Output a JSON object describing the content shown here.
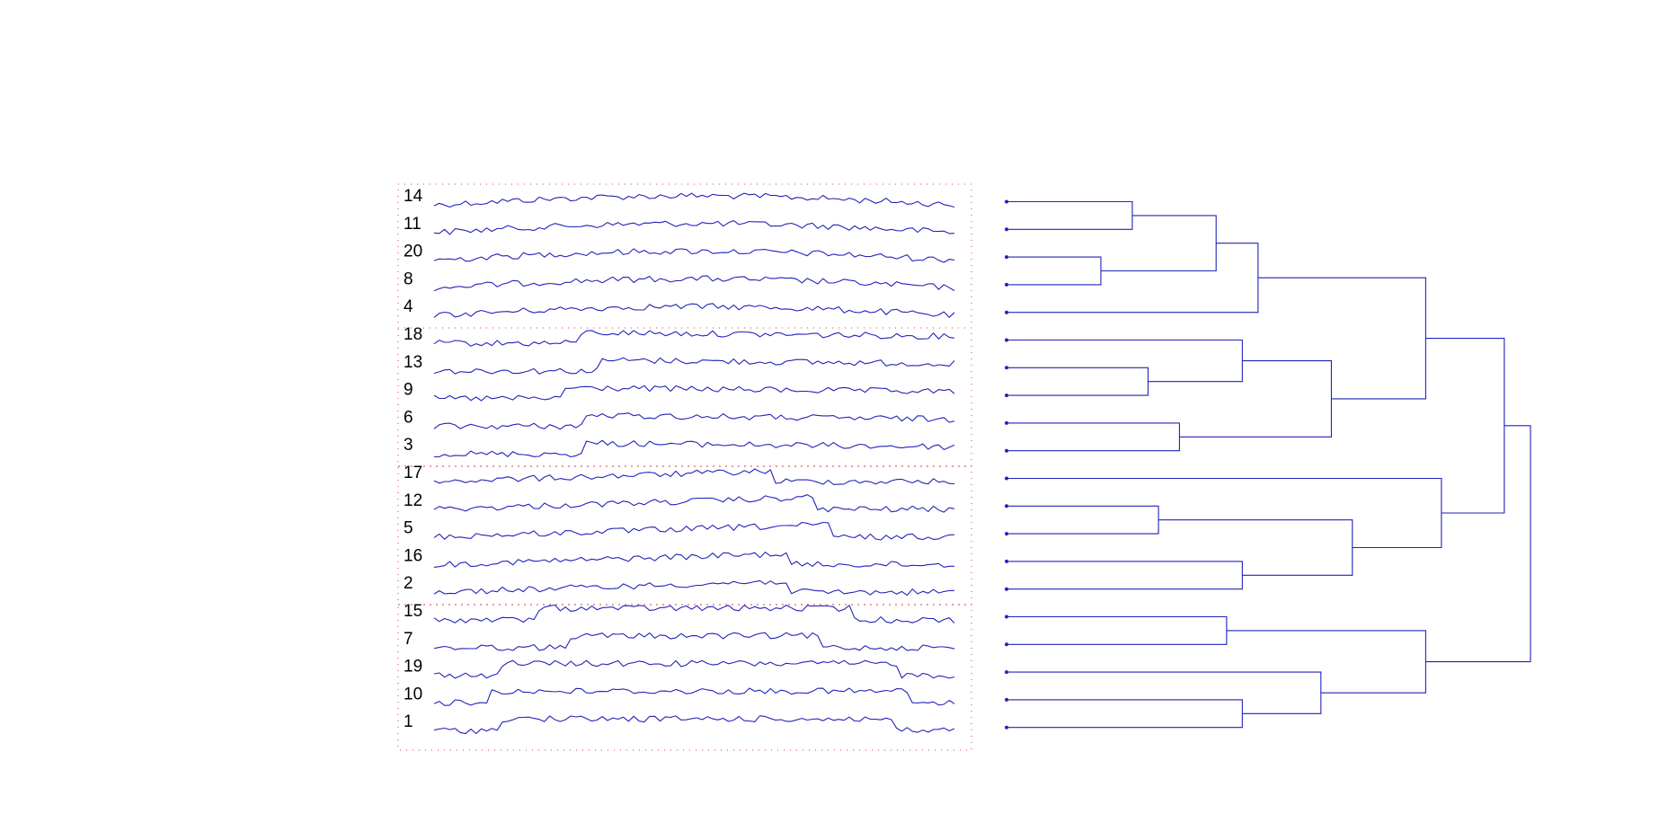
{
  "colors": {
    "series": "#2222bb",
    "dendrogram": "#2222bb",
    "panel_border": "#d04040"
  },
  "groups": [
    {
      "rows": [
        "14",
        "11",
        "20",
        "8",
        "4"
      ]
    },
    {
      "rows": [
        "18",
        "13",
        "9",
        "6",
        "3"
      ]
    },
    {
      "rows": [
        "17",
        "12",
        "5",
        "16",
        "2"
      ]
    },
    {
      "rows": [
        "15",
        "7",
        "19",
        "10",
        "1"
      ]
    }
  ],
  "series": [
    {
      "label": "14",
      "shape": "hump",
      "step_start": null,
      "step_end": null
    },
    {
      "label": "11",
      "shape": "hump",
      "step_start": null,
      "step_end": null
    },
    {
      "label": "20",
      "shape": "hump",
      "step_start": null,
      "step_end": null
    },
    {
      "label": "8",
      "shape": "hump",
      "step_start": null,
      "step_end": null
    },
    {
      "label": "4",
      "shape": "hump",
      "step_start": null,
      "step_end": null
    },
    {
      "label": "18",
      "shape": "step_up",
      "step_start": 0.28,
      "step_end": null
    },
    {
      "label": "13",
      "shape": "step_up",
      "step_start": 0.32,
      "step_end": null
    },
    {
      "label": "9",
      "shape": "step_up",
      "step_start": 0.25,
      "step_end": null
    },
    {
      "label": "6",
      "shape": "step_up",
      "step_start": 0.29,
      "step_end": null
    },
    {
      "label": "3",
      "shape": "step_up",
      "step_start": 0.29,
      "step_end": null
    },
    {
      "label": "17",
      "shape": "ramp_drop",
      "step_start": null,
      "step_end": 0.65
    },
    {
      "label": "12",
      "shape": "ramp_drop",
      "step_start": null,
      "step_end": 0.73
    },
    {
      "label": "5",
      "shape": "ramp_drop",
      "step_start": null,
      "step_end": 0.76
    },
    {
      "label": "16",
      "shape": "ramp_drop",
      "step_start": null,
      "step_end": 0.68
    },
    {
      "label": "2",
      "shape": "ramp_drop",
      "step_start": null,
      "step_end": 0.68
    },
    {
      "label": "15",
      "shape": "plateau",
      "step_start": 0.2,
      "step_end": 0.8
    },
    {
      "label": "7",
      "shape": "plateau",
      "step_start": 0.26,
      "step_end": 0.74
    },
    {
      "label": "19",
      "shape": "plateau",
      "step_start": 0.13,
      "step_end": 0.89
    },
    {
      "label": "10",
      "shape": "plateau",
      "step_start": 0.11,
      "step_end": 0.91
    },
    {
      "label": "1",
      "shape": "plateau",
      "step_start": 0.13,
      "step_end": 0.88
    }
  ],
  "dendrogram": {
    "leaf_order": [
      "14",
      "11",
      "20",
      "8",
      "4",
      "18",
      "13",
      "9",
      "6",
      "3",
      "17",
      "12",
      "5",
      "16",
      "2",
      "15",
      "7",
      "19",
      "10",
      "1"
    ],
    "merges": [
      {
        "left": "20",
        "right": "8",
        "height": 0.18
      },
      {
        "left": "14",
        "right": "11",
        "height": 0.24
      },
      {
        "left": "13",
        "right": "9",
        "height": 0.27
      },
      {
        "left": "12",
        "right": "5",
        "height": 0.29
      },
      {
        "left": "6",
        "right": "3",
        "height": 0.33
      },
      {
        "left": "15",
        "right": "7",
        "height": 0.42
      },
      {
        "left": "10",
        "right": "1",
        "height": 0.45
      },
      {
        "left": "18",
        "right": "13+9",
        "height": 0.45
      },
      {
        "left": "16",
        "right": "2",
        "height": 0.45
      },
      {
        "left": "14+11",
        "right": "20+8",
        "height": 0.4
      },
      {
        "left": "14+11+20+8",
        "right": "4",
        "height": 0.48
      },
      {
        "left": "19",
        "right": "10+1",
        "height": 0.6
      },
      {
        "left": "18+13+9",
        "right": "6+3",
        "height": 0.62
      },
      {
        "left": "12+5",
        "right": "16+2",
        "height": 0.66
      },
      {
        "left": "15+7",
        "right": "19+10+1",
        "height": 0.8
      },
      {
        "left": "17",
        "right": "12+5+16+2",
        "height": 0.83
      },
      {
        "left": "14+11+20+8+4",
        "right": "18+13+9+6+3",
        "height": 0.8
      },
      {
        "left": "A",
        "right": "B",
        "height": 0.95
      },
      {
        "left": "C",
        "right": "D",
        "height": 1.0
      }
    ]
  }
}
